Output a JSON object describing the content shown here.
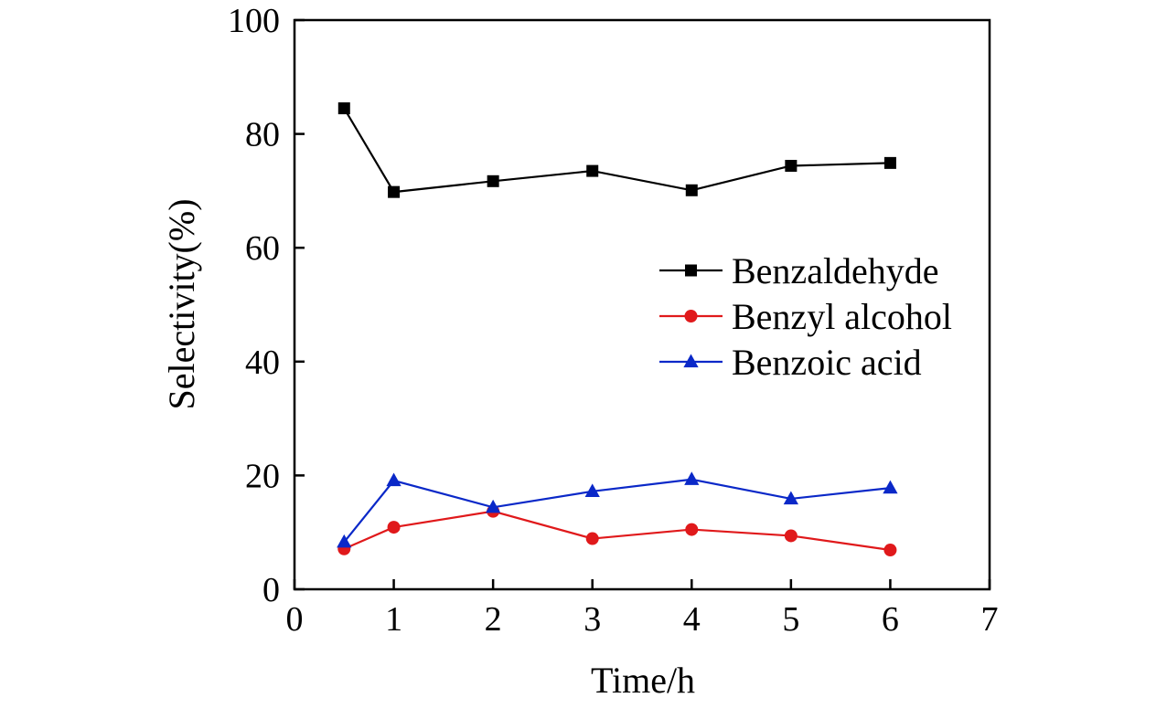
{
  "chart_data": {
    "type": "line",
    "title": "",
    "xlabel": "Time/h",
    "ylabel": "Selectivity(%)",
    "xlim": [
      0,
      7
    ],
    "ylim": [
      0,
      100
    ],
    "xticks": [
      0,
      1,
      2,
      3,
      4,
      5,
      6,
      7
    ],
    "yticks": [
      0,
      20,
      40,
      60,
      80,
      100
    ],
    "grid": false,
    "legend_position": "center-right",
    "x": [
      0.5,
      1,
      2,
      3,
      4,
      5,
      6
    ],
    "series": [
      {
        "name": "Benzaldehyde",
        "color": "#000000",
        "marker": "square",
        "values": [
          84.5,
          69.8,
          71.7,
          73.5,
          70.1,
          74.4,
          74.9
        ]
      },
      {
        "name": "Benzyl alcohol",
        "color": "#e0191b",
        "marker": "circle",
        "values": [
          7.1,
          10.9,
          13.7,
          8.9,
          10.5,
          9.4,
          6.9
        ]
      },
      {
        "name": "Benzoic acid",
        "color": "#0a28c8",
        "marker": "triangle",
        "values": [
          8.3,
          19.1,
          14.4,
          17.2,
          19.3,
          15.9,
          17.8
        ]
      }
    ]
  }
}
